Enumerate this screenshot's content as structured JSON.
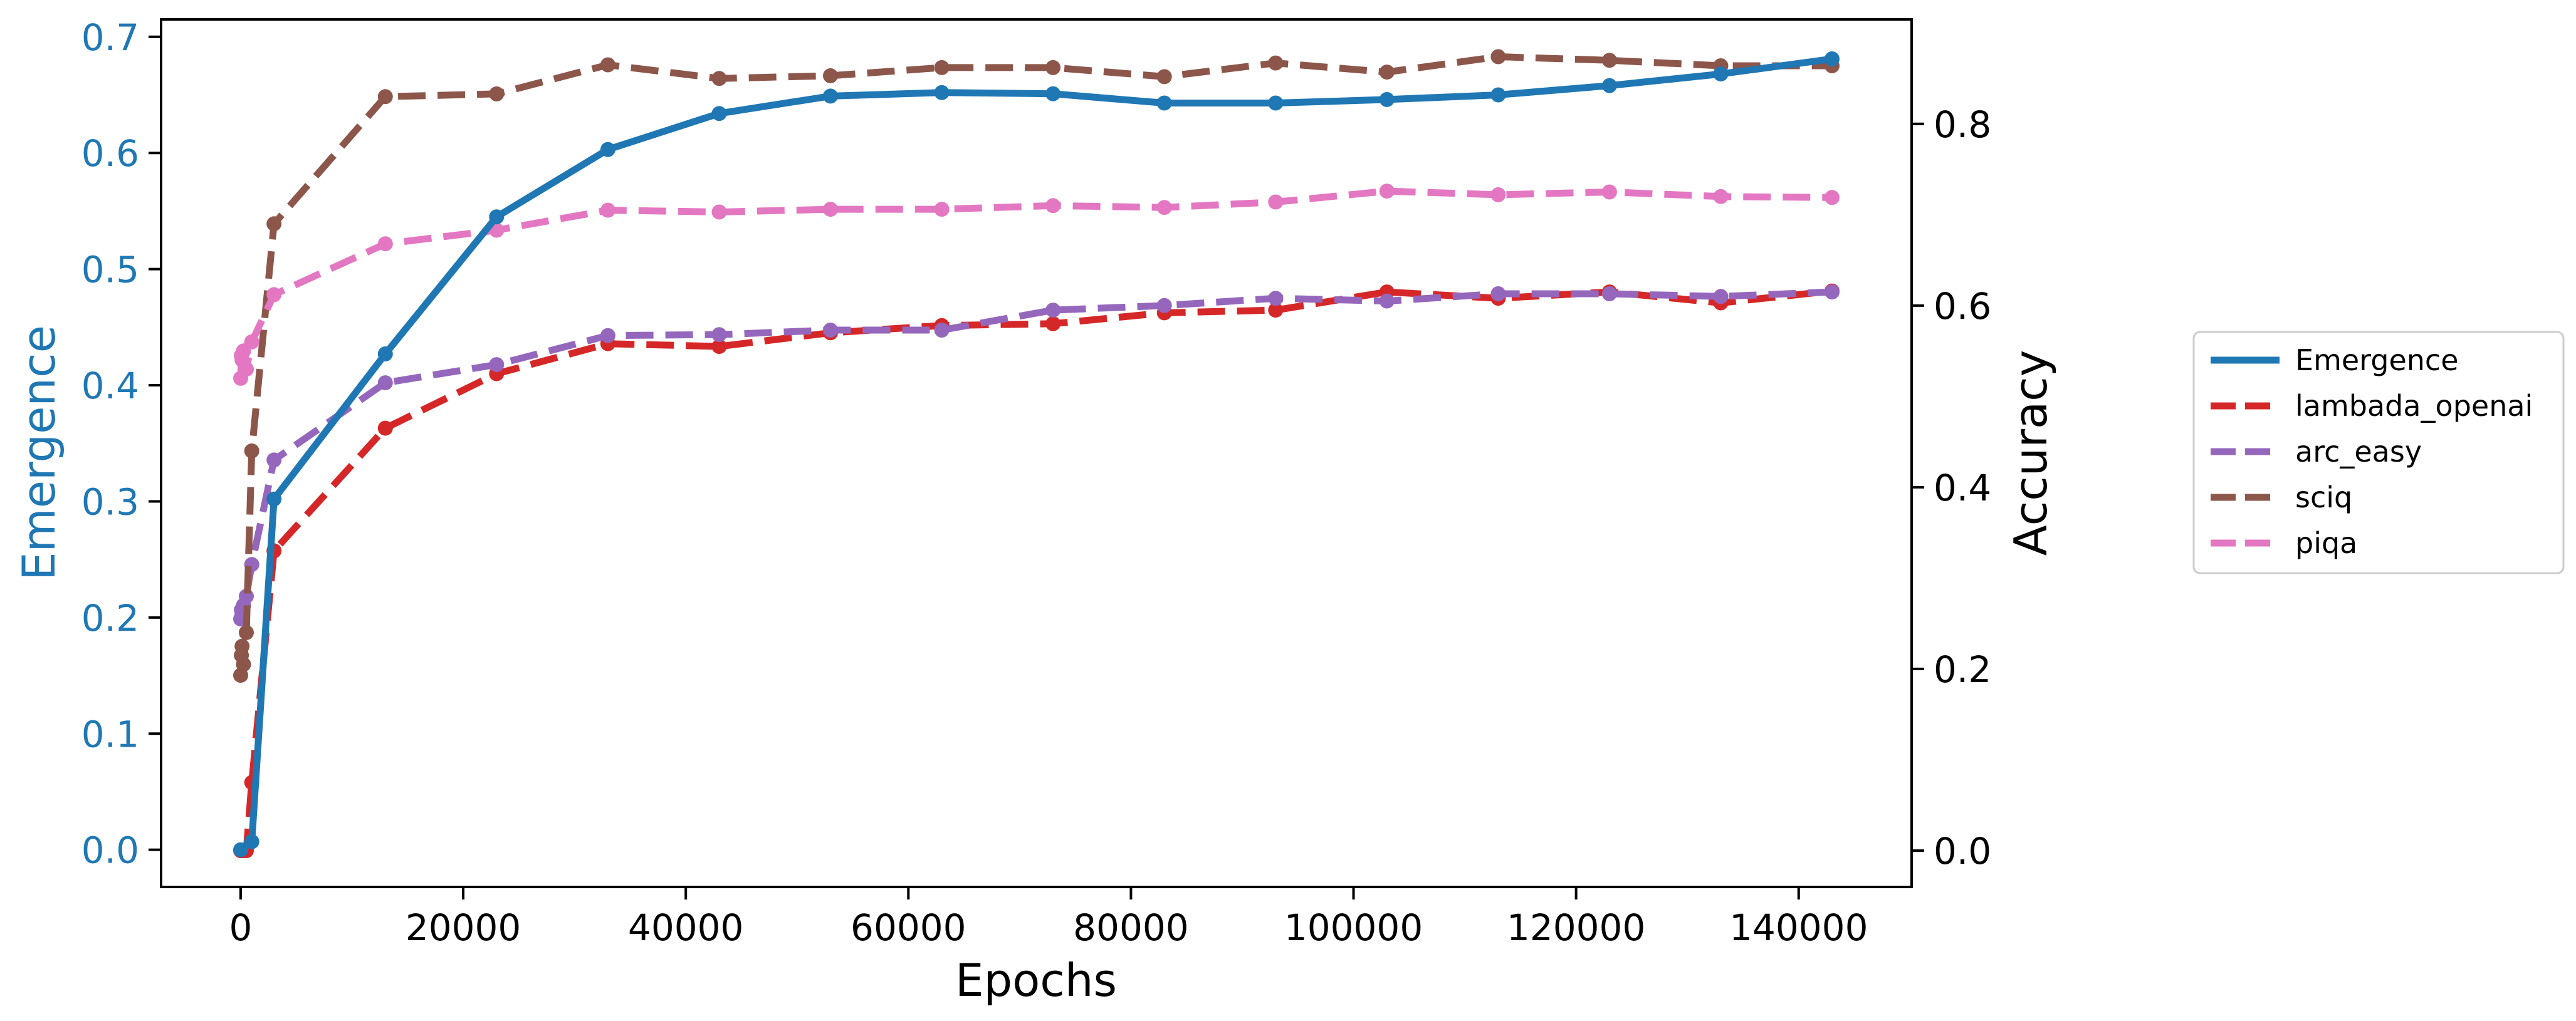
{
  "chart_data": {
    "type": "line",
    "xlabel": "Epochs",
    "ylabel_left": "Emergence",
    "ylabel_right": "Accuracy",
    "xlim": [
      -7150,
      150150
    ],
    "ylim_left": [
      -0.032,
      0.715
    ],
    "ylim_right": [
      -0.04,
      0.915
    ],
    "x_ticks": [
      0,
      20000,
      40000,
      60000,
      80000,
      100000,
      120000,
      140000
    ],
    "y_left_ticks": [
      0.0,
      0.1,
      0.2,
      0.3,
      0.4,
      0.5,
      0.6,
      0.7
    ],
    "y_right_ticks": [
      0.0,
      0.2,
      0.4,
      0.6,
      0.8
    ],
    "grid": false,
    "legend_position": "right (outside)",
    "series": [
      {
        "name": "Emergence",
        "axis": "left",
        "style": "solid",
        "color": "#1f77b4",
        "points": [
          [
            0,
            0.0
          ],
          [
            1000,
            0.007
          ],
          [
            3000,
            0.302
          ],
          [
            13000,
            0.427
          ],
          [
            23000,
            0.545
          ],
          [
            33000,
            0.603
          ],
          [
            43000,
            0.634
          ],
          [
            53000,
            0.649
          ],
          [
            63000,
            0.652
          ],
          [
            73000,
            0.651
          ],
          [
            83000,
            0.643
          ],
          [
            93000,
            0.643
          ],
          [
            103000,
            0.646
          ],
          [
            113000,
            0.65
          ],
          [
            123000,
            0.658
          ],
          [
            133000,
            0.668
          ],
          [
            143000,
            0.681
          ]
        ]
      },
      {
        "name": "lambada_openai",
        "axis": "right",
        "style": "dashed",
        "color": "#d62728",
        "points": [
          [
            0,
            0.0
          ],
          [
            64,
            0.0
          ],
          [
            128,
            0.0
          ],
          [
            256,
            0.0
          ],
          [
            512,
            0.0
          ],
          [
            1000,
            0.075
          ],
          [
            3000,
            0.33
          ],
          [
            13000,
            0.465
          ],
          [
            23000,
            0.525
          ],
          [
            33000,
            0.558
          ],
          [
            43000,
            0.555
          ],
          [
            53000,
            0.57
          ],
          [
            63000,
            0.578
          ],
          [
            73000,
            0.58
          ],
          [
            83000,
            0.592
          ],
          [
            93000,
            0.595
          ],
          [
            103000,
            0.615
          ],
          [
            113000,
            0.608
          ],
          [
            123000,
            0.615
          ],
          [
            133000,
            0.603
          ],
          [
            143000,
            0.616
          ]
        ]
      },
      {
        "name": "arc_easy",
        "axis": "right",
        "style": "dashed",
        "color": "#9467bd",
        "points": [
          [
            0,
            0.255
          ],
          [
            64,
            0.265
          ],
          [
            128,
            0.26
          ],
          [
            256,
            0.27
          ],
          [
            512,
            0.28
          ],
          [
            1000,
            0.315
          ],
          [
            3000,
            0.43
          ],
          [
            13000,
            0.515
          ],
          [
            23000,
            0.535
          ],
          [
            33000,
            0.567
          ],
          [
            43000,
            0.568
          ],
          [
            53000,
            0.573
          ],
          [
            63000,
            0.573
          ],
          [
            73000,
            0.595
          ],
          [
            83000,
            0.6
          ],
          [
            93000,
            0.608
          ],
          [
            103000,
            0.605
          ],
          [
            113000,
            0.613
          ],
          [
            123000,
            0.613
          ],
          [
            133000,
            0.61
          ],
          [
            143000,
            0.615
          ]
        ]
      },
      {
        "name": "sciq",
        "axis": "right",
        "style": "dashed",
        "color": "#8c564b",
        "points": [
          [
            0,
            0.193
          ],
          [
            64,
            0.215
          ],
          [
            128,
            0.225
          ],
          [
            256,
            0.205
          ],
          [
            512,
            0.24
          ],
          [
            1000,
            0.44
          ],
          [
            3000,
            0.69
          ],
          [
            13000,
            0.83
          ],
          [
            23000,
            0.833
          ],
          [
            33000,
            0.865
          ],
          [
            43000,
            0.85
          ],
          [
            53000,
            0.853
          ],
          [
            63000,
            0.862
          ],
          [
            73000,
            0.862
          ],
          [
            83000,
            0.852
          ],
          [
            93000,
            0.867
          ],
          [
            103000,
            0.857
          ],
          [
            113000,
            0.874
          ],
          [
            123000,
            0.87
          ],
          [
            133000,
            0.864
          ],
          [
            143000,
            0.864
          ]
        ]
      },
      {
        "name": "piqa",
        "axis": "right",
        "style": "dashed",
        "color": "#e377c2",
        "points": [
          [
            0,
            0.52
          ],
          [
            64,
            0.545
          ],
          [
            128,
            0.54
          ],
          [
            256,
            0.55
          ],
          [
            512,
            0.53
          ],
          [
            1000,
            0.56
          ],
          [
            3000,
            0.612
          ],
          [
            13000,
            0.668
          ],
          [
            23000,
            0.683
          ],
          [
            33000,
            0.705
          ],
          [
            43000,
            0.703
          ],
          [
            53000,
            0.706
          ],
          [
            63000,
            0.706
          ],
          [
            73000,
            0.71
          ],
          [
            83000,
            0.708
          ],
          [
            93000,
            0.714
          ],
          [
            103000,
            0.726
          ],
          [
            113000,
            0.722
          ],
          [
            123000,
            0.725
          ],
          [
            133000,
            0.72
          ],
          [
            143000,
            0.719
          ]
        ]
      }
    ]
  }
}
